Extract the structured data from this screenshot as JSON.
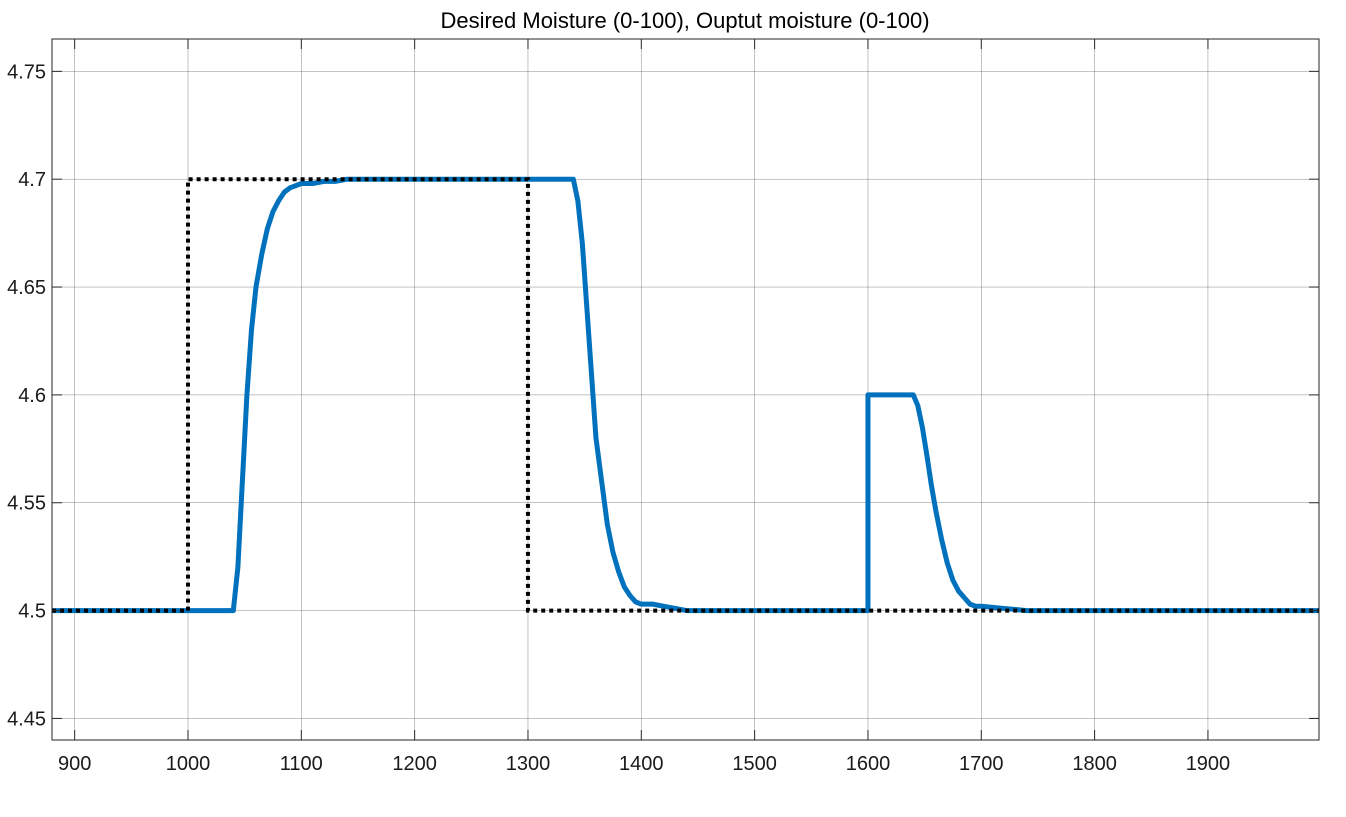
{
  "chart_data": {
    "type": "line",
    "title": "Desired Moisture (0-100), Ouptut moisture (0-100)",
    "xlabel": "",
    "ylabel": "",
    "xlim": [
      880,
      1998
    ],
    "ylim": [
      4.44,
      4.765
    ],
    "x_ticks": [
      900,
      1000,
      1100,
      1200,
      1300,
      1400,
      1500,
      1600,
      1700,
      1800,
      1900
    ],
    "y_ticks": [
      4.45,
      4.5,
      4.55,
      4.6,
      4.65,
      4.7,
      4.75
    ],
    "x_tick_labels": [
      "900",
      "1000",
      "1100",
      "1200",
      "1300",
      "1400",
      "1500",
      "1600",
      "1700",
      "1800",
      "1900"
    ],
    "y_tick_labels": [
      "4.45",
      "4.5",
      "4.55",
      "4.6",
      "4.65",
      "4.7",
      "4.75"
    ],
    "grid": true,
    "colors": {
      "output": "#0072bd",
      "desired": "#000000",
      "grid": "#262626",
      "axes": "#262626"
    },
    "series": [
      {
        "style": "dotted",
        "x": [
          880,
          1000,
          1000,
          1300,
          1300,
          1998
        ],
        "y": [
          4.5,
          4.5,
          4.7,
          4.7,
          4.5,
          4.5
        ]
      },
      {
        "style": "solid",
        "x": [
          880,
          1040,
          1044,
          1048,
          1052,
          1056,
          1060,
          1065,
          1070,
          1075,
          1080,
          1085,
          1090,
          1095,
          1100,
          1110,
          1120,
          1130,
          1140,
          1150,
          1160,
          1200,
          1340,
          1344,
          1348,
          1352,
          1356,
          1360,
          1365,
          1370,
          1375,
          1380,
          1385,
          1390,
          1395,
          1400,
          1410,
          1420,
          1430,
          1440,
          1450,
          1460,
          1600,
          1600,
          1640,
          1644,
          1648,
          1652,
          1656,
          1660,
          1665,
          1670,
          1675,
          1680,
          1685,
          1690,
          1695,
          1700,
          1720,
          1740,
          1998
        ],
        "y": [
          4.5,
          4.5,
          4.52,
          4.56,
          4.6,
          4.63,
          4.65,
          4.665,
          4.677,
          4.685,
          4.69,
          4.694,
          4.696,
          4.697,
          4.698,
          4.698,
          4.699,
          4.699,
          4.7,
          4.7,
          4.7,
          4.7,
          4.7,
          4.69,
          4.67,
          4.64,
          4.61,
          4.58,
          4.56,
          4.54,
          4.527,
          4.518,
          4.511,
          4.507,
          4.504,
          4.503,
          4.503,
          4.502,
          4.501,
          4.5,
          4.5,
          4.5,
          4.5,
          4.6,
          4.6,
          4.595,
          4.585,
          4.572,
          4.558,
          4.546,
          4.533,
          4.522,
          4.514,
          4.509,
          4.506,
          4.503,
          4.502,
          4.502,
          4.501,
          4.5,
          4.5
        ]
      }
    ]
  }
}
